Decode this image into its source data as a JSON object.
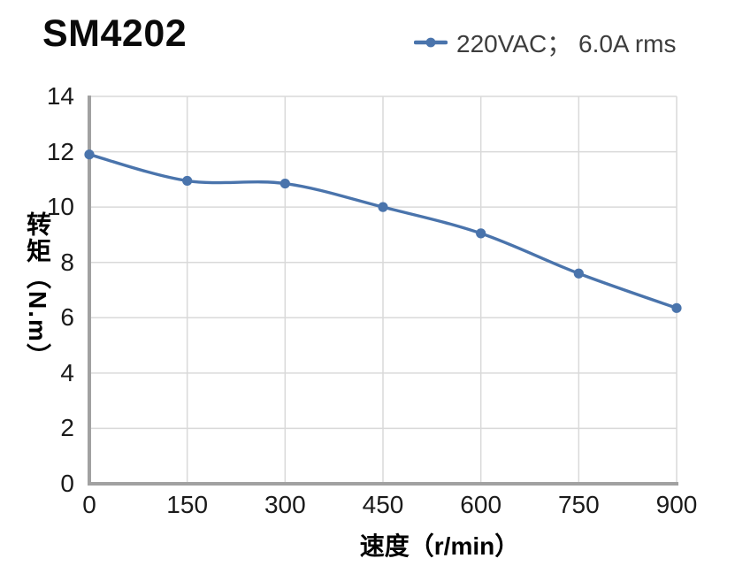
{
  "title": "SM4202",
  "legend": {
    "label": "220VAC； 6.0A rms",
    "series_color": "#4a74ac"
  },
  "chart_data": {
    "type": "line",
    "title": "SM4202",
    "xlabel": "速度（r/min）",
    "ylabel": "转矩（N.m）",
    "xlim": [
      0,
      900
    ],
    "ylim": [
      0,
      14
    ],
    "xticks": [
      0,
      150,
      300,
      450,
      600,
      750,
      900
    ],
    "yticks": [
      0,
      2,
      4,
      6,
      8,
      10,
      12,
      14
    ],
    "grid": true,
    "legend_position": "top-right",
    "series": [
      {
        "name": "220VAC； 6.0A rms",
        "x": [
          0,
          150,
          300,
          450,
          600,
          750,
          900
        ],
        "y": [
          11.9,
          10.95,
          10.85,
          10.0,
          9.05,
          7.6,
          6.35
        ],
        "color": "#4a74ac",
        "marker": "circle",
        "smooth": true
      }
    ],
    "colors": {
      "line": "#4a74ac",
      "grid": "#d9d9d9",
      "axis": "#a1a1a1",
      "tick_text": "#1a1a1a"
    }
  }
}
